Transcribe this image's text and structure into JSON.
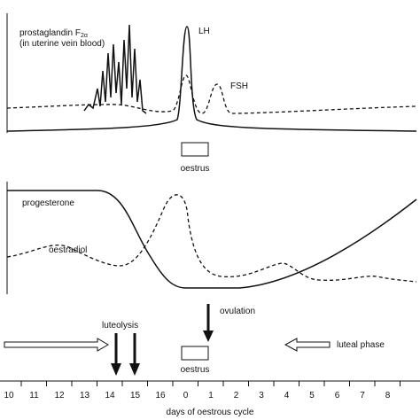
{
  "panels": {
    "prostaglandin": "prostaglandin F",
    "prostaglandin_sub": "2α",
    "prostaglandin_note": "(in uterine vein blood)",
    "lh": "LH",
    "fsh": "FSH",
    "oestrus_top": "oestrus",
    "progesterone": "progesterone",
    "oestradiol": "oestradiol",
    "ovulation": "ovulation",
    "luteolysis": "luteolysis",
    "oestrus_bottom": "oestrus",
    "luteal_phase": "luteal phase"
  },
  "axis": {
    "ticks": [
      "10",
      "11",
      "12",
      "13",
      "14",
      "15",
      "16",
      "0",
      "1",
      "2",
      "3",
      "4",
      "5",
      "6",
      "7",
      "8"
    ],
    "label": "days of oestrous cycle"
  }
}
